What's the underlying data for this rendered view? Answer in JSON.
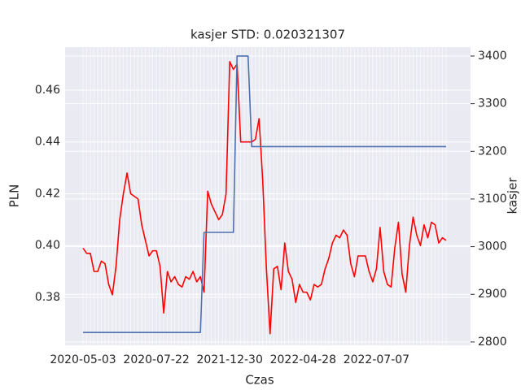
{
  "chart_data": {
    "type": "line",
    "title": "kasjer STD: 0.020321307",
    "x_label": "Czas",
    "y_label": "PLN",
    "y2_label": "kasjer",
    "categories": [
      "2020-05-03",
      null,
      null,
      null,
      null,
      null,
      null,
      null,
      null,
      null,
      null,
      null,
      null,
      null,
      null,
      null,
      null,
      null,
      null,
      null,
      "2020-07-22",
      null,
      null,
      null,
      null,
      null,
      null,
      null,
      null,
      null,
      null,
      null,
      null,
      null,
      null,
      null,
      null,
      null,
      null,
      null,
      "2021-12-30",
      null,
      null,
      null,
      null,
      null,
      null,
      null,
      null,
      null,
      null,
      null,
      null,
      null,
      null,
      null,
      null,
      null,
      null,
      null,
      "2022-04-28",
      null,
      null,
      null,
      null,
      null,
      null,
      null,
      null,
      null,
      null,
      null,
      null,
      null,
      null,
      null,
      null,
      null,
      null,
      null,
      "2022-07-07",
      null,
      null,
      null,
      null,
      null,
      null,
      null,
      null,
      null,
      null,
      null,
      null,
      null,
      null,
      null,
      null,
      null,
      null,
      null
    ],
    "series": [
      {
        "color": "#ff0000",
        "axis": "y",
        "values": [
          0.399,
          0.397,
          0.397,
          0.39,
          0.39,
          0.394,
          0.393,
          0.385,
          0.381,
          0.392,
          0.41,
          0.42,
          0.428,
          0.42,
          0.419,
          0.418,
          0.408,
          0.402,
          0.396,
          0.398,
          0.398,
          0.392,
          0.374,
          0.39,
          0.386,
          0.388,
          0.385,
          0.384,
          0.388,
          0.387,
          0.39,
          0.386,
          0.388,
          0.382,
          0.421,
          0.416,
          0.413,
          0.41,
          0.412,
          0.42,
          0.471,
          0.468,
          0.47,
          0.44,
          0.44,
          0.44,
          0.44,
          0.441,
          0.449,
          0.425,
          0.391,
          0.366,
          0.391,
          0.392,
          0.383,
          0.401,
          0.39,
          0.387,
          0.378,
          0.385,
          0.382,
          0.382,
          0.379,
          0.385,
          0.384,
          0.385,
          0.391,
          0.395,
          0.401,
          0.404,
          0.403,
          0.406,
          0.404,
          0.393,
          0.388,
          0.396,
          0.396,
          0.396,
          0.39,
          0.386,
          0.391,
          0.407,
          0.39,
          0.385,
          0.384,
          0.399,
          0.409,
          0.389,
          0.382,
          0.4,
          0.411,
          0.404,
          0.4,
          0.408,
          0.403,
          0.409,
          0.408,
          0.401,
          0.403,
          0.402
        ]
      },
      {
        "color": "#4c72b0",
        "axis": "y2",
        "values": [
          2820,
          2820,
          2820,
          2820,
          2820,
          2820,
          2820,
          2820,
          2820,
          2820,
          2820,
          2820,
          2820,
          2820,
          2820,
          2820,
          2820,
          2820,
          2820,
          2820,
          2820,
          2820,
          2820,
          2820,
          2820,
          2820,
          2820,
          2820,
          2820,
          2820,
          2820,
          2820,
          2820,
          3030,
          3030,
          3030,
          3030,
          3030,
          3030,
          3030,
          3030,
          3030,
          3400,
          3400,
          3400,
          3400,
          3210,
          3210,
          3210,
          3210,
          3210,
          3210,
          3210,
          3210,
          3210,
          3210,
          3210,
          3210,
          3210,
          3210,
          3210,
          3210,
          3210,
          3210,
          3210,
          3210,
          3210,
          3210,
          3210,
          3210,
          3210,
          3210,
          3210,
          3210,
          3210,
          3210,
          3210,
          3210,
          3210,
          3210,
          3210,
          3210,
          3210,
          3210,
          3210,
          3210,
          3210,
          3210,
          3210,
          3210,
          3210,
          3210,
          3210,
          3210,
          3210,
          3210,
          3210,
          3210,
          3210,
          3210
        ]
      }
    ],
    "ylim": [
      0.3615,
      0.4766
    ],
    "yticks": [
      0.38,
      {
        "value": 0.4,
        "label": "0.40"
      },
      0.42,
      0.44,
      0.46
    ],
    "y2lim": [
      2793,
      3418.7
    ],
    "y2ticks": [
      2800,
      2900,
      3000,
      3100,
      3200,
      3300,
      3400
    ],
    "grid": true
  }
}
